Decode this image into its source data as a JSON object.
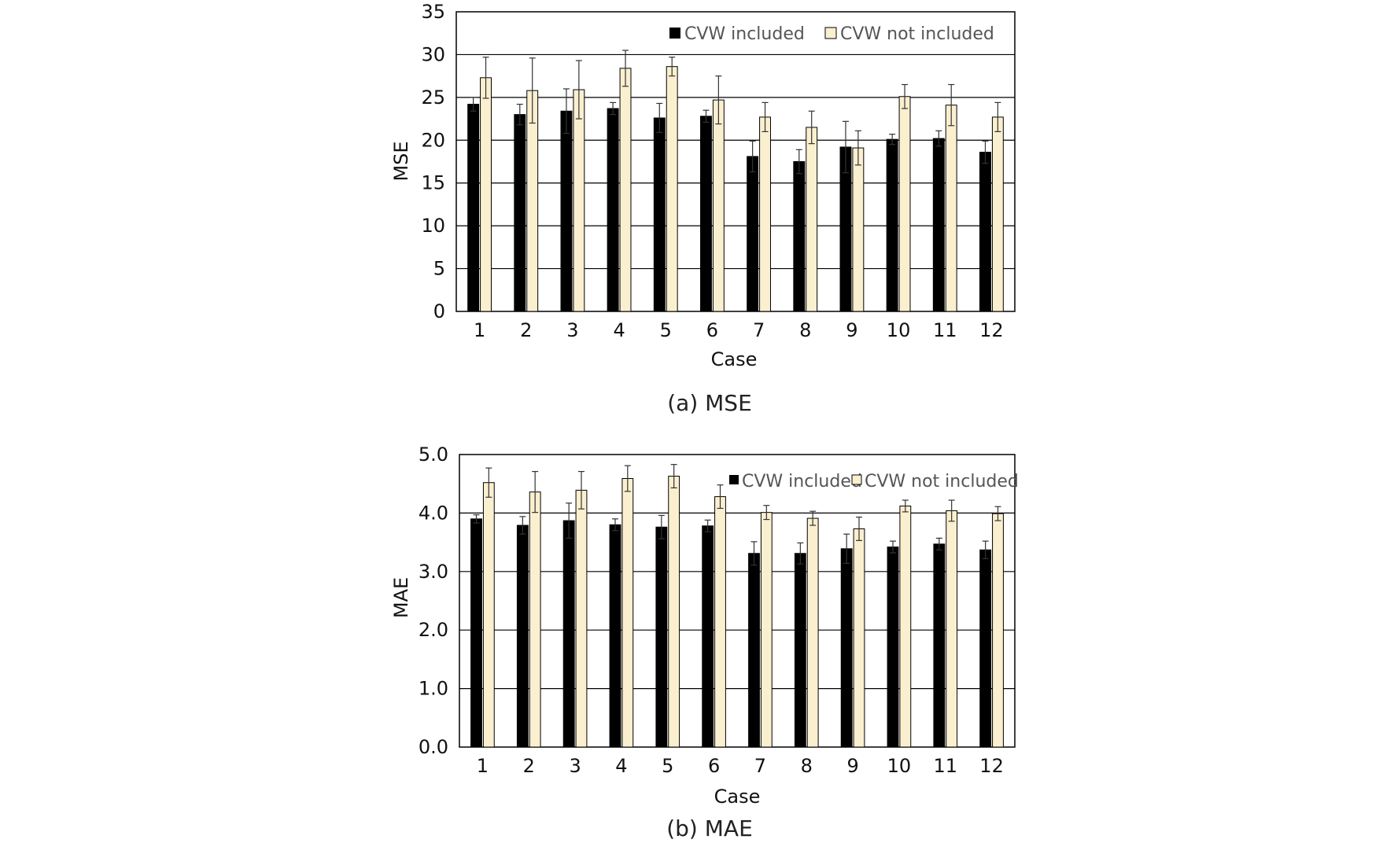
{
  "chart_data": [
    {
      "type": "bar",
      "caption": "(a)  MSE",
      "xlabel": "Case",
      "ylabel": "MSE",
      "ylim": [
        0,
        35
      ],
      "yticks": [
        "0",
        "5",
        "10",
        "15",
        "20",
        "25",
        "30",
        "35"
      ],
      "ytick_values": [
        0,
        5,
        10,
        15,
        20,
        25,
        30,
        35
      ],
      "categories": [
        "1",
        "2",
        "3",
        "4",
        "5",
        "6",
        "7",
        "8",
        "9",
        "10",
        "11",
        "12"
      ],
      "grid": true,
      "legend_position": "top-right",
      "series": [
        {
          "name": "CVW included",
          "color": "#000000",
          "values": [
            24.2,
            23.0,
            23.4,
            23.7,
            22.6,
            22.8,
            18.1,
            17.5,
            19.2,
            20.1,
            20.2,
            18.6
          ],
          "errors": [
            0.8,
            1.2,
            2.6,
            0.7,
            1.7,
            0.7,
            1.8,
            1.4,
            3.0,
            0.6,
            0.9,
            1.3
          ]
        },
        {
          "name": "CVW not included",
          "color": "#FAEFCF",
          "values": [
            27.3,
            25.8,
            25.9,
            28.4,
            28.6,
            24.7,
            22.7,
            21.5,
            19.1,
            25.1,
            24.1,
            22.7
          ],
          "errors": [
            2.4,
            3.8,
            3.4,
            2.1,
            1.1,
            2.8,
            1.7,
            1.9,
            2.0,
            1.4,
            2.4,
            1.7
          ]
        }
      ]
    },
    {
      "type": "bar",
      "caption": "(b)  MAE",
      "xlabel": "Case",
      "ylabel": "MAE",
      "ylim": [
        0,
        5
      ],
      "yticks": [
        "0.0",
        "1.0",
        "2.0",
        "3.0",
        "4.0",
        "5.0"
      ],
      "ytick_values": [
        0,
        1,
        2,
        3,
        4,
        5
      ],
      "categories": [
        "1",
        "2",
        "3",
        "4",
        "5",
        "6",
        "7",
        "8",
        "9",
        "10",
        "11",
        "12"
      ],
      "grid": true,
      "legend_position": "top-right",
      "series": [
        {
          "name": "CVW included",
          "color": "#000000",
          "values": [
            3.9,
            3.79,
            3.87,
            3.8,
            3.76,
            3.78,
            3.31,
            3.31,
            3.39,
            3.42,
            3.47,
            3.37
          ],
          "errors": [
            0.07,
            0.15,
            0.3,
            0.1,
            0.2,
            0.1,
            0.2,
            0.18,
            0.25,
            0.1,
            0.1,
            0.15
          ]
        },
        {
          "name": "CVW not included",
          "color": "#FAEFCF",
          "values": [
            4.52,
            4.36,
            4.39,
            4.59,
            4.63,
            4.28,
            4.01,
            3.91,
            3.73,
            4.12,
            4.04,
            3.99
          ],
          "errors": [
            0.25,
            0.35,
            0.32,
            0.22,
            0.2,
            0.2,
            0.12,
            0.12,
            0.2,
            0.1,
            0.18,
            0.12
          ]
        }
      ]
    }
  ]
}
